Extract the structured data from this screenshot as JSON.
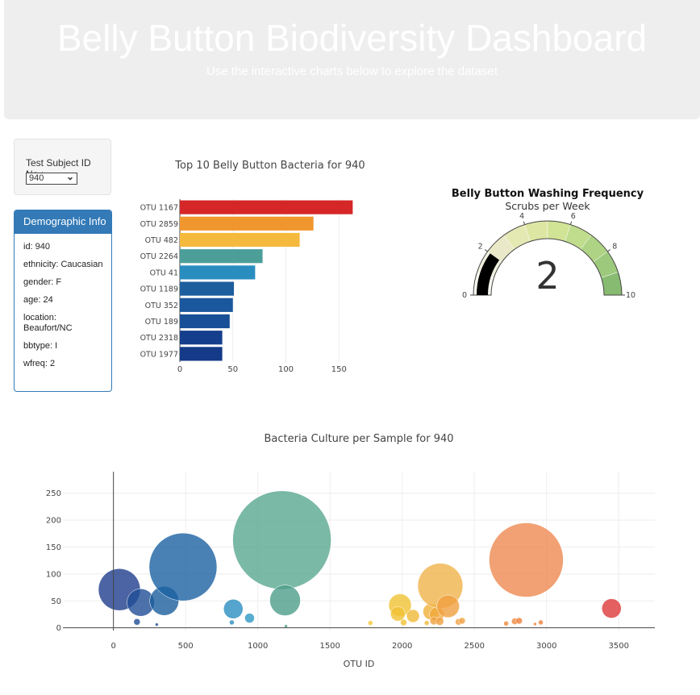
{
  "header": {
    "title": "Belly Button Biodiversity Dashboard",
    "subtitle": "Use the interactive charts below to explore the dataset"
  },
  "selector": {
    "label": "Test Subject ID No.:",
    "selected": "940",
    "icon": "chevron-down-icon"
  },
  "demographic": {
    "title": "Demographic Info",
    "lines": [
      "id: 940",
      "ethnicity: Caucasian",
      "gender: F",
      "age: 24",
      "location: Beaufort/NC",
      "bbtype: I",
      "wfreq: 2"
    ]
  },
  "chart_data": [
    {
      "type": "bar",
      "orientation": "horizontal",
      "title": "Top 10 Belly Button Bacteria for 940",
      "categories": [
        "OTU 1167",
        "OTU 2859",
        "OTU 482",
        "OTU 2264",
        "OTU 41",
        "OTU 1189",
        "OTU 352",
        "OTU 189",
        "OTU 2318",
        "OTU 1977"
      ],
      "values": [
        163,
        126,
        113,
        78,
        71,
        51,
        50,
        47,
        40,
        40
      ],
      "colors": [
        "#d62728",
        "#f0962e",
        "#f5b93d",
        "#4c9e99",
        "#2a8dc0",
        "#1c5e9e",
        "#1a579c",
        "#184f96",
        "#153f8c",
        "#143a88"
      ],
      "xticks": [
        0,
        50,
        100,
        150
      ],
      "xlim": [
        0,
        165
      ],
      "grid": true
    },
    {
      "type": "gauge",
      "title": "Belly Button Washing Frequency",
      "subtitle": "Scrubs per Week",
      "value": 2,
      "range": [
        0,
        10
      ],
      "ticks": [
        0,
        2,
        4,
        6,
        8,
        10
      ],
      "steps": [
        {
          "range": [
            0,
            1
          ],
          "color": "#f8f8f0"
        },
        {
          "range": [
            1,
            2
          ],
          "color": "#f0efde"
        },
        {
          "range": [
            2,
            3
          ],
          "color": "#e9e9c9"
        },
        {
          "range": [
            3,
            4
          ],
          "color": "#e4e8b3"
        },
        {
          "range": [
            4,
            5
          ],
          "color": "#dde6a2"
        },
        {
          "range": [
            5,
            6
          ],
          "color": "#d1e395"
        },
        {
          "range": [
            6,
            7
          ],
          "color": "#c0dc8d"
        },
        {
          "range": [
            7,
            8
          ],
          "color": "#afd384"
        },
        {
          "range": [
            8,
            9
          ],
          "color": "#9dc97d"
        },
        {
          "range": [
            9,
            10
          ],
          "color": "#87bb71"
        }
      ],
      "bar_color": "#000000"
    },
    {
      "type": "scatter",
      "title": "Bacteria Culture per Sample for 940",
      "xlabel": "OTU ID",
      "ylabel": "",
      "xlim": [
        -350,
        3750
      ],
      "ylim": [
        -5,
        290
      ],
      "xticks": [
        0,
        500,
        1000,
        1500,
        2000,
        2500,
        3000,
        3500
      ],
      "yticks": [
        0,
        50,
        100,
        150,
        200,
        250
      ],
      "grid": true,
      "points": [
        {
          "x": 41,
          "y": 71,
          "r": 26,
          "color": "#1f3d8c"
        },
        {
          "x": 189,
          "y": 47,
          "r": 17,
          "color": "#1f4e96"
        },
        {
          "x": 163,
          "y": 11,
          "r": 4,
          "color": "#1f4e96"
        },
        {
          "x": 300,
          "y": 6,
          "r": 2,
          "color": "#1f4e96"
        },
        {
          "x": 352,
          "y": 50,
          "r": 18,
          "color": "#1c5e9e"
        },
        {
          "x": 482,
          "y": 113,
          "r": 42,
          "color": "#1c62a3"
        },
        {
          "x": 830,
          "y": 35,
          "r": 12,
          "color": "#2a8dc0"
        },
        {
          "x": 820,
          "y": 10,
          "r": 3,
          "color": "#2a8dc0"
        },
        {
          "x": 943,
          "y": 18,
          "r": 6,
          "color": "#2e97c3"
        },
        {
          "x": 1167,
          "y": 163,
          "r": 61,
          "color": "#5aa891"
        },
        {
          "x": 1189,
          "y": 51,
          "r": 19,
          "color": "#4c9e8a"
        },
        {
          "x": 1195,
          "y": 3,
          "r": 2,
          "color": "#4c9e8a"
        },
        {
          "x": 1780,
          "y": 9,
          "r": 3,
          "color": "#f2c83a"
        },
        {
          "x": 1985,
          "y": 42,
          "r": 14,
          "color": "#f0c233"
        },
        {
          "x": 1970,
          "y": 26,
          "r": 9,
          "color": "#f0c233"
        },
        {
          "x": 2010,
          "y": 10,
          "r": 4,
          "color": "#f0c233"
        },
        {
          "x": 2075,
          "y": 22,
          "r": 8,
          "color": "#f0b938"
        },
        {
          "x": 2170,
          "y": 9,
          "r": 3,
          "color": "#f0b938"
        },
        {
          "x": 2200,
          "y": 30,
          "r": 10,
          "color": "#f0b03a"
        },
        {
          "x": 2240,
          "y": 25,
          "r": 9,
          "color": "#f0a83b"
        },
        {
          "x": 2264,
          "y": 78,
          "r": 28,
          "color": "#f0b34a"
        },
        {
          "x": 2318,
          "y": 40,
          "r": 14,
          "color": "#f0a040"
        },
        {
          "x": 2220,
          "y": 13,
          "r": 5,
          "color": "#f0a040"
        },
        {
          "x": 2260,
          "y": 12,
          "r": 5,
          "color": "#f0a040"
        },
        {
          "x": 2390,
          "y": 11,
          "r": 4,
          "color": "#f0a040"
        },
        {
          "x": 2415,
          "y": 13,
          "r": 4,
          "color": "#f0a040"
        },
        {
          "x": 2720,
          "y": 8,
          "r": 3,
          "color": "#ee8a3c"
        },
        {
          "x": 2780,
          "y": 12,
          "r": 4,
          "color": "#ee8a3c"
        },
        {
          "x": 2810,
          "y": 13,
          "r": 4,
          "color": "#ee7f3a"
        },
        {
          "x": 2859,
          "y": 126,
          "r": 46,
          "color": "#ee8a50"
        },
        {
          "x": 2920,
          "y": 7,
          "r": 2,
          "color": "#ee7f3a"
        },
        {
          "x": 2960,
          "y": 10,
          "r": 3,
          "color": "#ee7f3a"
        },
        {
          "x": 3450,
          "y": 36,
          "r": 12,
          "color": "#dd3a3a"
        }
      ]
    }
  ]
}
